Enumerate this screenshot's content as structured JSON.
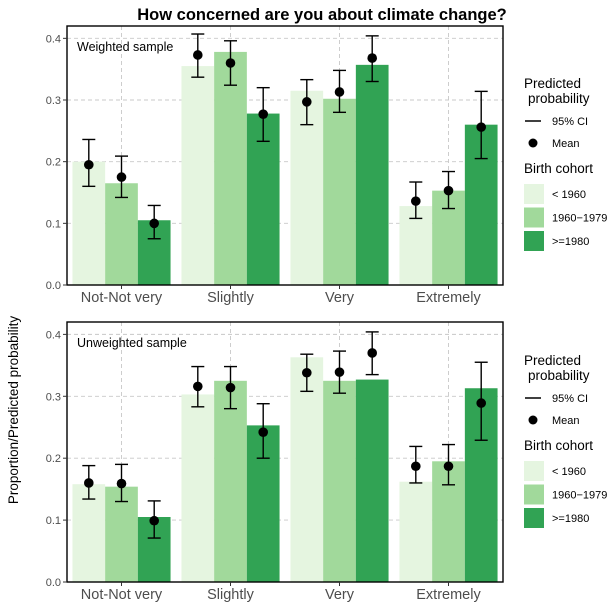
{
  "title": "How concerned are you about climate change?",
  "ylabel": "Proportion/Predicted probability",
  "colors": {
    "lt1960": "#e5f5e0",
    "c1960_1979": "#a1d99b",
    "ge1980": "#31a354"
  },
  "legend": {
    "pred_title_line1": "Predicted",
    "pred_title_line2": "probability",
    "ci_label": "95% CI",
    "mean_label": "Mean",
    "cohort_title": "Birth cohort",
    "cohorts": [
      "< 1960",
      "1960−1979",
      ">=1980"
    ]
  },
  "chart_data": [
    {
      "type": "bar",
      "panel_label": "Weighted sample",
      "categories": [
        "Not-Not very",
        "Slightly",
        "Very",
        "Extremely"
      ],
      "ylim": [
        0,
        0.42
      ],
      "yticks": [
        "0.0",
        "0.1",
        "0.2",
        "0.3",
        "0.4"
      ],
      "grid": true,
      "series": [
        {
          "name": "< 1960",
          "values": [
            0.2,
            0.355,
            0.315,
            0.128
          ],
          "mean": [
            0.195,
            0.373,
            0.297,
            0.136
          ],
          "ci_low": [
            0.16,
            0.337,
            0.26,
            0.108
          ],
          "ci_high": [
            0.236,
            0.407,
            0.333,
            0.167
          ]
        },
        {
          "name": "1960−1979",
          "values": [
            0.165,
            0.378,
            0.302,
            0.153
          ],
          "mean": [
            0.175,
            0.36,
            0.313,
            0.153
          ],
          "ci_low": [
            0.142,
            0.324,
            0.28,
            0.124
          ],
          "ci_high": [
            0.209,
            0.396,
            0.348,
            0.184
          ]
        },
        {
          "name": ">=1980",
          "values": [
            0.105,
            0.278,
            0.357,
            0.26
          ],
          "mean": [
            0.1,
            0.277,
            0.368,
            0.256
          ],
          "ci_low": [
            0.075,
            0.233,
            0.33,
            0.205
          ],
          "ci_high": [
            0.129,
            0.32,
            0.404,
            0.314
          ]
        }
      ]
    },
    {
      "type": "bar",
      "panel_label": "Unweighted sample",
      "categories": [
        "Not-Not very",
        "Slightly",
        "Very",
        "Extremely"
      ],
      "ylim": [
        0,
        0.42
      ],
      "yticks": [
        "0.0",
        "0.1",
        "0.2",
        "0.3",
        "0.4"
      ],
      "grid": true,
      "series": [
        {
          "name": "< 1960",
          "values": [
            0.158,
            0.303,
            0.363,
            0.162
          ],
          "mean": [
            0.16,
            0.316,
            0.338,
            0.187
          ],
          "ci_low": [
            0.134,
            0.283,
            0.308,
            0.16
          ],
          "ci_high": [
            0.188,
            0.348,
            0.368,
            0.219
          ]
        },
        {
          "name": "1960−1979",
          "values": [
            0.154,
            0.325,
            0.325,
            0.195
          ],
          "mean": [
            0.159,
            0.314,
            0.339,
            0.187
          ],
          "ci_low": [
            0.13,
            0.28,
            0.305,
            0.157
          ],
          "ci_high": [
            0.19,
            0.348,
            0.373,
            0.222
          ]
        },
        {
          "name": ">=1980",
          "values": [
            0.105,
            0.253,
            0.327,
            0.313
          ],
          "mean": [
            0.099,
            0.242,
            0.37,
            0.289
          ],
          "ci_low": [
            0.071,
            0.2,
            0.335,
            0.229
          ],
          "ci_high": [
            0.131,
            0.288,
            0.404,
            0.355
          ]
        }
      ]
    }
  ]
}
